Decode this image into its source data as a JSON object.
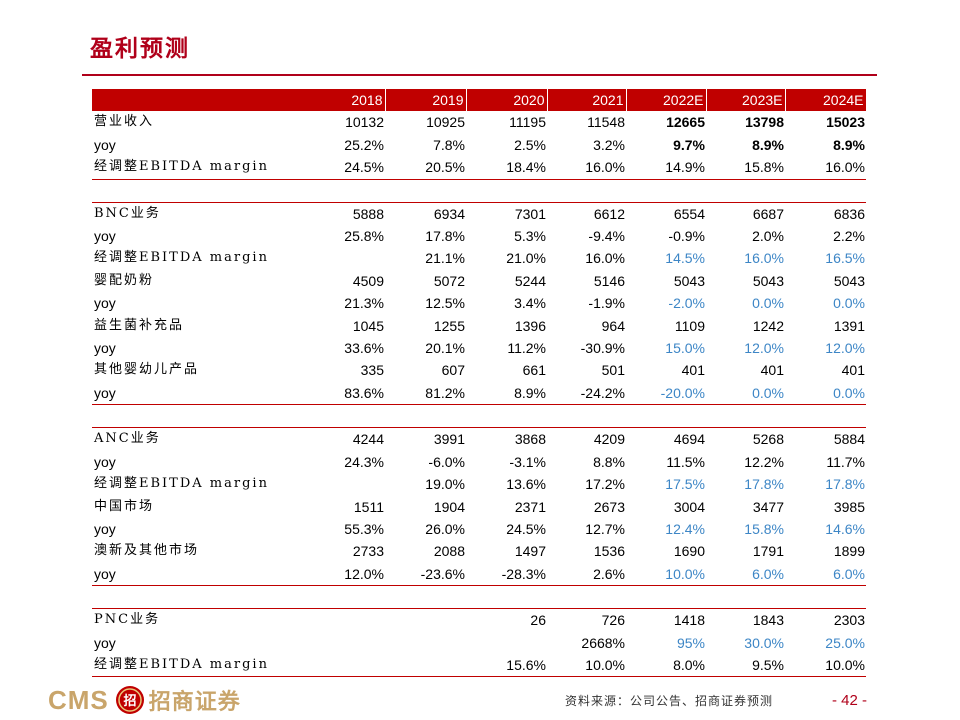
{
  "title": "盈利预测",
  "table": {
    "headers": [
      "",
      "2018",
      "2019",
      "2020",
      "2021",
      "2022E",
      "2023E",
      "2024E"
    ],
    "groups": [
      {
        "rows": [
          {
            "label": "营业收入",
            "cjk": true,
            "values": [
              "10132",
              "10925",
              "11195",
              "11548",
              "12665",
              "13798",
              "15023"
            ],
            "style": "bold-forecast"
          },
          {
            "label": "yoy",
            "values": [
              "25.2%",
              "7.8%",
              "2.5%",
              "3.2%",
              "9.7%",
              "8.9%",
              "8.9%"
            ],
            "style": "bold-forecast"
          },
          {
            "label": "经调整EBITDA margin",
            "cjk": true,
            "values": [
              "24.5%",
              "20.5%",
              "18.4%",
              "16.0%",
              "14.9%",
              "15.8%",
              "16.0%"
            ],
            "style": "plain"
          }
        ]
      },
      {
        "rows": [
          {
            "label": "BNC业务",
            "cjk": true,
            "values": [
              "5888",
              "6934",
              "7301",
              "6612",
              "6554",
              "6687",
              "6836"
            ],
            "style": "plain"
          },
          {
            "label": "yoy",
            "values": [
              "25.8%",
              "17.8%",
              "5.3%",
              "-9.4%",
              "-0.9%",
              "2.0%",
              "2.2%"
            ],
            "style": "plain"
          },
          {
            "label": "经调整EBITDA margin",
            "cjk": true,
            "values": [
              "",
              "21.1%",
              "21.0%",
              "16.0%",
              "14.5%",
              "16.0%",
              "16.5%"
            ],
            "style": "blue-forecast"
          },
          {
            "label": "婴配奶粉",
            "cjk": true,
            "values": [
              "4509",
              "5072",
              "5244",
              "5146",
              "5043",
              "5043",
              "5043"
            ],
            "style": "plain"
          },
          {
            "label": "yoy",
            "values": [
              "21.3%",
              "12.5%",
              "3.4%",
              "-1.9%",
              "-2.0%",
              "0.0%",
              "0.0%"
            ],
            "style": "blue-forecast"
          },
          {
            "label": "益生菌补充品",
            "cjk": true,
            "values": [
              "1045",
              "1255",
              "1396",
              "964",
              "1109",
              "1242",
              "1391"
            ],
            "style": "plain"
          },
          {
            "label": "yoy",
            "values": [
              "33.6%",
              "20.1%",
              "11.2%",
              "-30.9%",
              "15.0%",
              "12.0%",
              "12.0%"
            ],
            "style": "blue-forecast"
          },
          {
            "label": "其他婴幼儿产品",
            "cjk": true,
            "values": [
              "335",
              "607",
              "661",
              "501",
              "401",
              "401",
              "401"
            ],
            "style": "plain"
          },
          {
            "label": "yoy",
            "values": [
              "83.6%",
              "81.2%",
              "8.9%",
              "-24.2%",
              "-20.0%",
              "0.0%",
              "0.0%"
            ],
            "style": "blue-forecast"
          }
        ]
      },
      {
        "rows": [
          {
            "label": "ANC业务",
            "cjk": true,
            "values": [
              "4244",
              "3991",
              "3868",
              "4209",
              "4694",
              "5268",
              "5884"
            ],
            "style": "plain"
          },
          {
            "label": "yoy",
            "values": [
              "24.3%",
              "-6.0%",
              "-3.1%",
              "8.8%",
              "11.5%",
              "12.2%",
              "11.7%"
            ],
            "style": "plain"
          },
          {
            "label": "经调整EBITDA margin",
            "cjk": true,
            "values": [
              "",
              "19.0%",
              "13.6%",
              "17.2%",
              "17.5%",
              "17.8%",
              "17.8%"
            ],
            "style": "blue-forecast"
          },
          {
            "label": "中国市场",
            "cjk": true,
            "values": [
              "1511",
              "1904",
              "2371",
              "2673",
              "3004",
              "3477",
              "3985"
            ],
            "style": "plain"
          },
          {
            "label": "yoy",
            "values": [
              "55.3%",
              "26.0%",
              "24.5%",
              "12.7%",
              "12.4%",
              "15.8%",
              "14.6%"
            ],
            "style": "blue-forecast"
          },
          {
            "label": "澳新及其他市场",
            "cjk": true,
            "values": [
              "2733",
              "2088",
              "1497",
              "1536",
              "1690",
              "1791",
              "1899"
            ],
            "style": "plain"
          },
          {
            "label": "yoy",
            "values": [
              "12.0%",
              "-23.6%",
              "-28.3%",
              "2.6%",
              "10.0%",
              "6.0%",
              "6.0%"
            ],
            "style": "blue-forecast"
          }
        ]
      },
      {
        "rows": [
          {
            "label": "PNC业务",
            "cjk": true,
            "values": [
              "",
              "",
              "26",
              "726",
              "1418",
              "1843",
              "2303"
            ],
            "style": "plain"
          },
          {
            "label": "yoy",
            "values": [
              "",
              "",
              "",
              "2668%",
              "95%",
              "30.0%",
              "25.0%"
            ],
            "style": "blue-forecast"
          },
          {
            "label": "经调整EBITDA margin",
            "cjk": true,
            "values": [
              "",
              "",
              "15.6%",
              "10.0%",
              "8.0%",
              "9.5%",
              "10.0%"
            ],
            "style": "plain"
          }
        ]
      }
    ]
  },
  "footer": {
    "logo_text": "CMS",
    "logo_mark": "招",
    "brand_cn": "招商证券",
    "source": "资料来源：公司公告、招商证券预测",
    "page": "- 42 -"
  },
  "colors": {
    "brand_red": "#c00000",
    "forecast_blue": "#3d86c6",
    "logo_gold": "#c9a56b"
  }
}
